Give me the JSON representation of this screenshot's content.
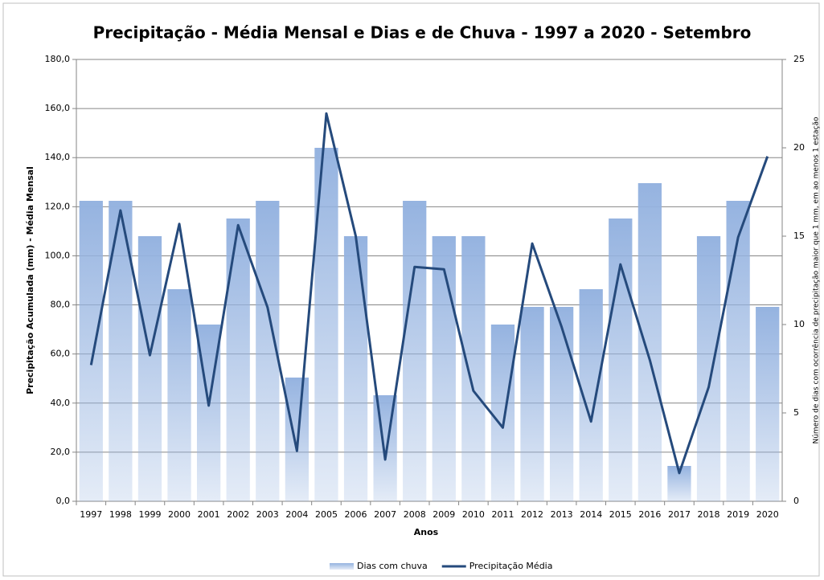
{
  "chart_data": {
    "type": "bar-line",
    "title": "Precipitação - Média Mensal e Dias e de Chuva - 1997 a 2020 - Setembro",
    "x_label": "Anos",
    "y_label": "Precipitação Acumulada (mm) - Média Mensal",
    "y2_label": "Número de dias com ocorrência de precipitação maior que 1 mm, em ao menos 1 estação",
    "categories": [
      "1997",
      "1998",
      "1999",
      "2000",
      "2001",
      "2002",
      "2003",
      "2004",
      "2005",
      "2006",
      "2007",
      "2008",
      "2009",
      "2010",
      "2011",
      "2012",
      "2013",
      "2014",
      "2015",
      "2016",
      "2017",
      "2018",
      "2019",
      "2020"
    ],
    "series": [
      {
        "name": "Dias com chuva",
        "type": "bar",
        "axis": "y2",
        "color": "#95b3e0",
        "values": [
          17,
          17,
          15,
          12,
          10,
          16,
          17,
          7,
          20,
          15,
          6,
          17,
          15,
          15,
          10,
          11,
          11,
          12,
          16,
          18,
          2,
          15,
          17,
          11
        ]
      },
      {
        "name": "Precipitação Média",
        "type": "line",
        "axis": "y",
        "color": "#254a7c",
        "values": [
          55.5,
          118.5,
          59.5,
          113,
          39,
          112.5,
          79,
          20.5,
          158,
          108,
          17,
          95.5,
          94.5,
          45,
          30,
          105,
          71,
          32.5,
          96.5,
          57.5,
          11.5,
          46.5,
          107.5,
          140.5
        ]
      }
    ],
    "ylim": [
      0,
      180
    ],
    "yticks": [
      {
        "value": 0,
        "label": "0,0"
      },
      {
        "value": 20,
        "label": "20,0"
      },
      {
        "value": 40,
        "label": "40,0"
      },
      {
        "value": 60,
        "label": "60,0"
      },
      {
        "value": 80,
        "label": "80,0"
      },
      {
        "value": 100,
        "label": "100,0"
      },
      {
        "value": 120,
        "label": "120,0"
      },
      {
        "value": 140,
        "label": "140,0"
      },
      {
        "value": 160,
        "label": "160,0"
      },
      {
        "value": 180,
        "label": "180,0"
      }
    ],
    "y2lim": [
      0,
      25
    ],
    "y2ticks": [
      0,
      5,
      10,
      15,
      20,
      25
    ],
    "grid": true,
    "legend": "bottom"
  }
}
